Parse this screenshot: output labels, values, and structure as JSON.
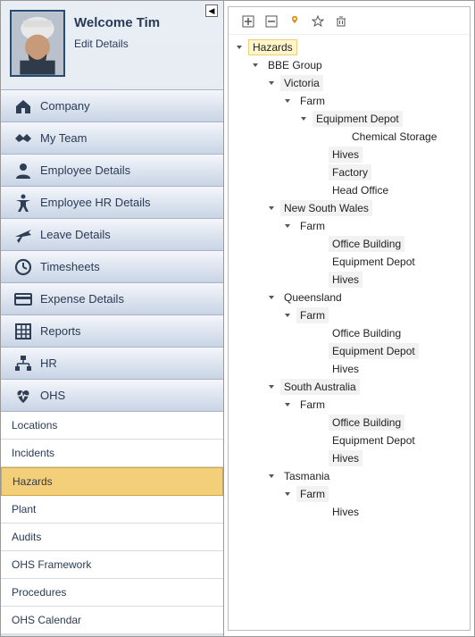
{
  "colors": {
    "accent": "#2a3a55",
    "highlight_bg": "#f4cf7a",
    "highlight_border": "#d4a637",
    "tree_hl_bg": "#fff5c9",
    "tree_hl_border": "#e9d27a",
    "alt_row": "#f2f2f2",
    "nav_grad_top": "#f4f7fb",
    "nav_grad_bottom": "#c8d4e5",
    "orange": "#e08a00"
  },
  "user": {
    "welcome_label": "Welcome Tim",
    "edit_label": "Edit Details"
  },
  "nav": [
    {
      "key": "company",
      "label": "Company",
      "icon": "home"
    },
    {
      "key": "myteam",
      "label": "My Team",
      "icon": "handshake"
    },
    {
      "key": "empdetails",
      "label": "Employee Details",
      "icon": "user"
    },
    {
      "key": "emphr",
      "label": "Employee HR Details",
      "icon": "accessibility"
    },
    {
      "key": "leave",
      "label": "Leave Details",
      "icon": "plane"
    },
    {
      "key": "timesheets",
      "label": "Timesheets",
      "icon": "clock"
    },
    {
      "key": "expense",
      "label": "Expense Details",
      "icon": "card"
    },
    {
      "key": "reports",
      "label": "Reports",
      "icon": "grid"
    },
    {
      "key": "hr",
      "label": "HR",
      "icon": "org"
    },
    {
      "key": "ohs",
      "label": "OHS",
      "icon": "heart"
    }
  ],
  "ohs_sub": [
    {
      "key": "locations",
      "label": "Locations"
    },
    {
      "key": "incidents",
      "label": "Incidents"
    },
    {
      "key": "hazards",
      "label": "Hazards",
      "active": true
    },
    {
      "key": "plant",
      "label": "Plant"
    },
    {
      "key": "audits",
      "label": "Audits"
    },
    {
      "key": "framework",
      "label": "OHS Framework"
    },
    {
      "key": "procedures",
      "label": "Procedures"
    },
    {
      "key": "calendar",
      "label": "OHS Calendar"
    }
  ],
  "tree": {
    "toolbar": [
      "plus-icon",
      "minus-icon",
      "pin-icon",
      "star-icon",
      "trash-icon"
    ],
    "rows": [
      {
        "ind": 1,
        "exp": true,
        "label": "Hazards",
        "hl": true
      },
      {
        "ind": 2,
        "exp": true,
        "label": "BBE Group"
      },
      {
        "ind": 3,
        "exp": true,
        "label": "Victoria",
        "alt": true
      },
      {
        "ind": 4,
        "exp": true,
        "label": "Farm"
      },
      {
        "ind": 5,
        "exp": true,
        "label": "Equipment Depot",
        "alt": true
      },
      {
        "ind": 7,
        "label": "Chemical Storage"
      },
      {
        "ind": 6,
        "label": "Hives",
        "alt": true
      },
      {
        "ind": 6,
        "label": "Factory",
        "alt": true
      },
      {
        "ind": 6,
        "label": "Head Office"
      },
      {
        "ind": 3,
        "exp": true,
        "label": "New South Wales",
        "alt": true
      },
      {
        "ind": 4,
        "exp": true,
        "label": "Farm"
      },
      {
        "ind": 6,
        "label": "Office Building",
        "alt": true
      },
      {
        "ind": 6,
        "label": "Equipment Depot"
      },
      {
        "ind": 6,
        "label": "Hives",
        "alt": true
      },
      {
        "ind": 3,
        "exp": true,
        "label": "Queensland"
      },
      {
        "ind": 4,
        "exp": true,
        "label": "Farm",
        "alt": true
      },
      {
        "ind": 6,
        "label": "Office Building"
      },
      {
        "ind": 6,
        "label": "Equipment Depot",
        "alt": true
      },
      {
        "ind": 6,
        "label": "Hives"
      },
      {
        "ind": 3,
        "exp": true,
        "label": "South Australia",
        "alt": true
      },
      {
        "ind": 4,
        "exp": true,
        "label": "Farm"
      },
      {
        "ind": 6,
        "label": "Office Building",
        "alt": true
      },
      {
        "ind": 6,
        "label": "Equipment Depot"
      },
      {
        "ind": 6,
        "label": "Hives",
        "alt": true
      },
      {
        "ind": 3,
        "exp": true,
        "label": "Tasmania"
      },
      {
        "ind": 4,
        "exp": true,
        "label": "Farm",
        "alt": true
      },
      {
        "ind": 6,
        "label": "Hives"
      }
    ]
  }
}
